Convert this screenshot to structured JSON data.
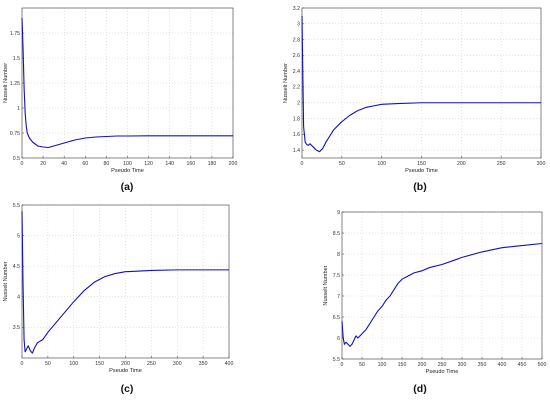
{
  "chart_data": [
    {
      "type": "line",
      "caption": "(a)",
      "xlabel": "Pseudo Time",
      "ylabel": "Nusselt Number",
      "xlim": [
        0,
        200
      ],
      "ylim": [
        0.5,
        2.0
      ],
      "xticks": [
        0,
        20,
        40,
        60,
        80,
        100,
        120,
        140,
        160,
        180,
        200
      ],
      "yticks": [
        0.5,
        0.75,
        1,
        1.25,
        1.5,
        1.75
      ],
      "xtick_labels": [
        "0",
        "20",
        "40",
        "60",
        "80",
        "100",
        "120",
        "140",
        "160",
        "180",
        "200"
      ],
      "ytick_labels": [
        "0.5",
        "0.75",
        "1",
        "1.25",
        "1.5",
        "1.75"
      ],
      "grid": true,
      "series": [
        {
          "color": "#1010c8",
          "x": [
            0,
            1,
            2,
            3,
            4,
            5,
            7,
            10,
            15,
            20,
            25,
            30,
            40,
            50,
            60,
            70,
            80,
            90,
            100,
            120,
            140,
            160,
            180,
            200
          ],
          "y": [
            1.9,
            1.6,
            1.2,
            0.95,
            0.82,
            0.75,
            0.7,
            0.66,
            0.62,
            0.61,
            0.605,
            0.62,
            0.65,
            0.68,
            0.7,
            0.71,
            0.715,
            0.72,
            0.72,
            0.722,
            0.722,
            0.722,
            0.722,
            0.722
          ]
        }
      ]
    },
    {
      "type": "line",
      "caption": "(b)",
      "xlabel": "Pseudo Time",
      "ylabel": "Nusselt Number",
      "xlim": [
        0,
        300
      ],
      "ylim": [
        1.3,
        3.2
      ],
      "xticks": [
        0,
        50,
        100,
        150,
        200,
        250,
        300
      ],
      "yticks": [
        1.4,
        1.6,
        1.8,
        2,
        2.2,
        2.4,
        2.6,
        2.8,
        3,
        3.2
      ],
      "xtick_labels": [
        "0",
        "50",
        "100",
        "150",
        "200",
        "250",
        "300"
      ],
      "ytick_labels": [
        "1.4",
        "1.6",
        "1.8",
        "2",
        "2.2",
        "2.4",
        "2.6",
        "2.8",
        "3",
        "3.2"
      ],
      "grid": true,
      "series": [
        {
          "color": "#1010c8",
          "x": [
            0,
            1,
            2,
            4,
            6,
            8,
            10,
            14,
            18,
            22,
            26,
            30,
            35,
            40,
            50,
            60,
            70,
            80,
            90,
            100,
            120,
            150,
            200,
            250,
            300
          ],
          "y": [
            3.1,
            2.4,
            1.7,
            1.5,
            1.47,
            1.46,
            1.48,
            1.44,
            1.4,
            1.38,
            1.42,
            1.5,
            1.58,
            1.66,
            1.76,
            1.84,
            1.9,
            1.94,
            1.96,
            1.98,
            1.99,
            2.0,
            2.0,
            2.0,
            2.0
          ]
        }
      ]
    },
    {
      "type": "line",
      "caption": "(c)",
      "xlabel": "Pseudo Time",
      "ylabel": "Nusselt Number",
      "xlim": [
        0,
        400
      ],
      "ylim": [
        3.0,
        5.5
      ],
      "xticks": [
        0,
        50,
        100,
        150,
        200,
        250,
        300,
        350,
        400
      ],
      "yticks": [
        3.5,
        4,
        4.5,
        5,
        5.5
      ],
      "xtick_labels": [
        "0",
        "50",
        "100",
        "150",
        "200",
        "250",
        "300",
        "350",
        "400"
      ],
      "ytick_labels": [
        "3.5",
        "4",
        "4.5",
        "5",
        "5.5"
      ],
      "grid": true,
      "series": [
        {
          "color": "#1010c8",
          "x": [
            0,
            2,
            4,
            6,
            9,
            12,
            16,
            20,
            25,
            30,
            40,
            50,
            60,
            70,
            80,
            100,
            120,
            140,
            160,
            180,
            200,
            250,
            300,
            350,
            400
          ],
          "y": [
            5.4,
            4.2,
            3.3,
            3.1,
            3.15,
            3.2,
            3.12,
            3.08,
            3.18,
            3.25,
            3.3,
            3.42,
            3.52,
            3.62,
            3.72,
            3.92,
            4.1,
            4.24,
            4.33,
            4.38,
            4.41,
            4.43,
            4.44,
            4.44,
            4.44
          ]
        }
      ]
    },
    {
      "type": "line",
      "caption": "(d)",
      "xlabel": "Pseudo Time",
      "ylabel": "Nusselt Number",
      "xlim": [
        0,
        500
      ],
      "ylim": [
        5.5,
        9.0
      ],
      "xticks": [
        0,
        50,
        100,
        150,
        200,
        250,
        300,
        350,
        400,
        450,
        500
      ],
      "yticks": [
        5.5,
        6,
        6.5,
        7,
        7.5,
        8,
        8.5,
        9
      ],
      "xtick_labels": [
        "0",
        "50",
        "100",
        "150",
        "200",
        "250",
        "300",
        "350",
        "400",
        "450",
        "500"
      ],
      "ytick_labels": [
        "5.5",
        "6",
        "6.5",
        "7",
        "7.5",
        "8",
        "8.5",
        "9"
      ],
      "grid": true,
      "series": [
        {
          "color": "#1010c8",
          "x": [
            0,
            3,
            6,
            10,
            15,
            20,
            25,
            30,
            35,
            40,
            45,
            50,
            60,
            70,
            80,
            90,
            100,
            110,
            120,
            130,
            140,
            150,
            160,
            170,
            180,
            200,
            220,
            250,
            280,
            300,
            350,
            400,
            450,
            500
          ],
          "y": [
            6.4,
            6.0,
            5.85,
            5.9,
            5.85,
            5.8,
            5.85,
            5.95,
            6.05,
            6.0,
            6.05,
            6.1,
            6.2,
            6.35,
            6.5,
            6.65,
            6.75,
            6.9,
            7.0,
            7.15,
            7.3,
            7.4,
            7.45,
            7.5,
            7.55,
            7.6,
            7.68,
            7.75,
            7.85,
            7.92,
            8.05,
            8.15,
            8.2,
            8.25
          ]
        }
      ]
    }
  ]
}
